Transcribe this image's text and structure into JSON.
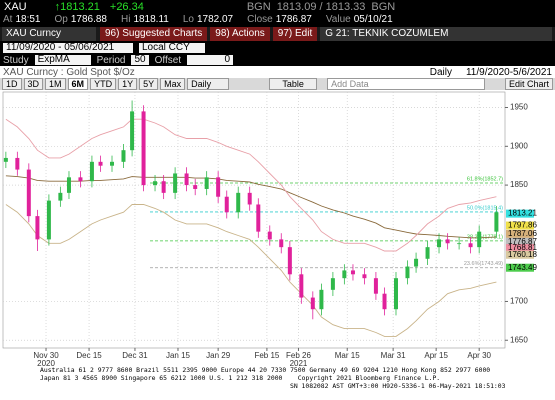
{
  "quote": {
    "ticker": "XAU",
    "arrow": "↑",
    "last": "1813.21",
    "change": "+26.34",
    "bid_source": "BGN",
    "bid_ask": "1813.09 / 1813.33",
    "ask_source": "BGN"
  },
  "info": [
    {
      "label": "At",
      "value": "18:51"
    },
    {
      "label": "Op",
      "value": "1786.88"
    },
    {
      "label": "Hi",
      "value": "1818.11"
    },
    {
      "label": "Lo",
      "value": "1782.07"
    },
    {
      "label": "Close",
      "value": "1786.87"
    },
    {
      "label": "Value",
      "value": "05/10/21"
    }
  ],
  "toolbar": {
    "security": "XAU Curncy",
    "buttons": [
      "96) Suggested Charts",
      "98) Actions",
      "97) Edit"
    ],
    "page_title": "G 21: TEKNIK COZUMLEM"
  },
  "range": {
    "dates": "11/09/2020 - 05/06/2021",
    "currency": "Local CCY"
  },
  "study": {
    "label": "Study",
    "name": "ExpMA",
    "period_label": "Period",
    "period": "50",
    "offset_label": "Offset",
    "offset": "0"
  },
  "chart_header": {
    "security": "XAU Curncy : Gold Spot  $/Oz",
    "frequency": "Daily",
    "range": "11/9/2020-5/6/2021"
  },
  "periods": [
    "1D",
    "3D",
    "1M",
    "6M",
    "YTD",
    "1Y",
    "5Y",
    "Max"
  ],
  "selected_period": "6M",
  "frequency": "Daily",
  "table_button": "Table",
  "add_data": "Add Data",
  "edit_chart": "Edit Chart",
  "chart_data": {
    "type": "candlestick",
    "x": [
      "2020-11-16",
      "2020-11-20",
      "2020-11-24",
      "2020-11-27",
      "2020-12-01",
      "2020-12-05",
      "2020-12-08",
      "2020-12-12",
      "2020-12-16",
      "2020-12-19",
      "2020-12-23",
      "2020-12-27",
      "2020-12-30",
      "2021-01-03",
      "2021-01-07",
      "2021-01-10",
      "2021-01-14",
      "2021-01-18",
      "2021-01-21",
      "2021-01-25",
      "2021-01-29",
      "2021-02-01",
      "2021-02-05",
      "2021-02-09",
      "2021-02-12",
      "2021-02-16",
      "2021-02-20",
      "2021-02-23",
      "2021-02-27",
      "2021-03-03",
      "2021-03-06",
      "2021-03-10",
      "2021-03-14",
      "2021-03-17",
      "2021-03-21",
      "2021-03-25",
      "2021-03-28",
      "2021-04-01",
      "2021-04-05",
      "2021-04-08",
      "2021-04-12",
      "2021-04-16",
      "2021-04-19",
      "2021-04-23",
      "2021-04-27",
      "2021-04-30",
      "2021-05-06"
    ],
    "open": [
      1880,
      1885,
      1870,
      1810,
      1780,
      1830,
      1840,
      1860,
      1855,
      1880,
      1875,
      1880,
      1895,
      1945,
      1850,
      1855,
      1840,
      1865,
      1850,
      1845,
      1860,
      1835,
      1815,
      1840,
      1825,
      1790,
      1780,
      1770,
      1735,
      1705,
      1690,
      1715,
      1730,
      1740,
      1735,
      1730,
      1710,
      1690,
      1730,
      1745,
      1755,
      1770,
      1780,
      1775,
      1775,
      1770,
      1790
    ],
    "high": [
      1893,
      1893,
      1878,
      1818,
      1838,
      1848,
      1868,
      1868,
      1888,
      1888,
      1888,
      1903,
      1959,
      1953,
      1863,
      1863,
      1873,
      1873,
      1858,
      1868,
      1868,
      1843,
      1848,
      1848,
      1833,
      1798,
      1788,
      1778,
      1743,
      1713,
      1723,
      1738,
      1748,
      1748,
      1743,
      1738,
      1718,
      1738,
      1753,
      1763,
      1778,
      1788,
      1788,
      1783,
      1783,
      1798,
      1823
    ],
    "low": [
      1872,
      1862,
      1802,
      1765,
      1772,
      1822,
      1832,
      1847,
      1847,
      1867,
      1867,
      1872,
      1887,
      1842,
      1842,
      1832,
      1832,
      1842,
      1837,
      1837,
      1827,
      1807,
      1807,
      1817,
      1782,
      1772,
      1762,
      1727,
      1697,
      1677,
      1682,
      1707,
      1722,
      1727,
      1722,
      1702,
      1682,
      1682,
      1722,
      1737,
      1747,
      1762,
      1767,
      1767,
      1762,
      1762,
      1782
    ],
    "close": [
      1885,
      1870,
      1810,
      1780,
      1830,
      1840,
      1860,
      1855,
      1880,
      1875,
      1880,
      1895,
      1945,
      1850,
      1855,
      1840,
      1865,
      1850,
      1845,
      1860,
      1835,
      1815,
      1840,
      1825,
      1790,
      1780,
      1770,
      1735,
      1705,
      1690,
      1715,
      1730,
      1740,
      1735,
      1730,
      1710,
      1690,
      1730,
      1745,
      1755,
      1770,
      1780,
      1775,
      1775,
      1770,
      1790,
      1815
    ],
    "up_color": "#2fb84a",
    "down_color": "#e0219b",
    "lines": [
      {
        "color": "#8a6a3c",
        "values": [
          1862,
          1861,
          1859,
          1856,
          1855,
          1855,
          1855,
          1855,
          1856,
          1856,
          1857,
          1858,
          1861,
          1860,
          1860,
          1860,
          1860,
          1860,
          1859,
          1859,
          1858,
          1856,
          1855,
          1854,
          1851,
          1848,
          1845,
          1840,
          1834,
          1828,
          1823,
          1818,
          1814,
          1810,
          1806,
          1801,
          1795,
          1792,
          1789,
          1787,
          1786,
          1785,
          1784,
          1783,
          1782,
          1782,
          1783
        ]
      },
      {
        "color": "#e8a0a8",
        "values": [
          1935,
          1925,
          1910,
          1895,
          1885,
          1885,
          1890,
          1900,
          1910,
          1915,
          1920,
          1925,
          1935,
          1935,
          1930,
          1925,
          1915,
          1910,
          1910,
          1910,
          1905,
          1900,
          1895,
          1890,
          1880,
          1865,
          1850,
          1835,
          1820,
          1805,
          1790,
          1780,
          1775,
          1775,
          1775,
          1770,
          1765,
          1765,
          1775,
          1785,
          1800,
          1810,
          1820,
          1825,
          1827,
          1830,
          1835
        ]
      },
      {
        "color": "#c9b48a",
        "values": [
          1825,
          1815,
          1800,
          1785,
          1775,
          1775,
          1780,
          1790,
          1800,
          1805,
          1810,
          1815,
          1825,
          1825,
          1820,
          1815,
          1805,
          1800,
          1800,
          1800,
          1795,
          1790,
          1785,
          1780,
          1770,
          1755,
          1740,
          1725,
          1710,
          1695,
          1680,
          1670,
          1665,
          1665,
          1665,
          1660,
          1655,
          1655,
          1665,
          1675,
          1690,
          1700,
          1710,
          1715,
          1717,
          1720,
          1725
        ]
      }
    ],
    "levels": [
      {
        "value": 1852.7,
        "label": "61.8%(1852.7)",
        "color": "#3cc43c"
      },
      {
        "value": 1815.4,
        "label": "50.0%(1815.4)",
        "color": "#33cccc"
      },
      {
        "value": 1778.1,
        "label": "38.2%(1778.1)",
        "color": "#3cc43c"
      },
      {
        "value": 1743.49,
        "label": "23.6%(1743.49)",
        "color": "#9a9a9a"
      }
    ],
    "price_labels": [
      {
        "value": 1813.21,
        "color": "#33e0e0"
      },
      {
        "value": 1797.86,
        "color": "#f0e04a"
      },
      {
        "value": 1787.06,
        "color": "#d6b07a"
      },
      {
        "value": 1776.87,
        "color": "#bfbfbf"
      },
      {
        "value": 1768.81,
        "color": "#ef8fa0"
      },
      {
        "value": 1760.18,
        "color": "#d9c9a0"
      },
      {
        "value": 1743.49,
        "color": "#4ccc4c"
      }
    ],
    "xlim": [
      "2020-11-15",
      "2021-05-09"
    ],
    "ylim": [
      1640,
      1970
    ],
    "yticks": [
      1650,
      1700,
      1850,
      1900,
      1950
    ],
    "xticks": [
      {
        "value": "2020-11-30",
        "label": "Nov 30"
      },
      {
        "value": "2020-12-15",
        "label": "Dec 15"
      },
      {
        "value": "2020-12-31",
        "label": "Dec 31"
      },
      {
        "value": "2021-01-15",
        "label": "Jan 15"
      },
      {
        "value": "2021-01-29",
        "label": "Jan 29"
      },
      {
        "value": "2021-02-15",
        "label": "Feb 15"
      },
      {
        "value": "2021-02-26",
        "label": "Feb 26"
      },
      {
        "value": "2021-03-15",
        "label": "Mar 15"
      },
      {
        "value": "2021-03-31",
        "label": "Mar 31"
      },
      {
        "value": "2021-04-15",
        "label": "Apr 15"
      },
      {
        "value": "2021-04-30",
        "label": "Apr 30"
      }
    ],
    "year_ticks": [
      {
        "value": "2020-11-30",
        "label": "2020"
      },
      {
        "value": "2021-02-26",
        "label": "2021"
      }
    ],
    "grid": true
  },
  "footer": [
    "Australia 61 2 9777 8600 Brazil 5511 2395 9000 Europe 44 20 7330 7500 Germany 49 69 9204 1210 Hong Kong 852 2977 6000",
    "Japan 81 3 4565 8900 Singapore 65 6212 1000 U.S. 1 212 318 2000",
    "Copyright 2021 Bloomberg Finance L.P.",
    "SN 1082082 AST GMT+3:00 H920-5336-1 06-May-2021 18:51:03"
  ]
}
